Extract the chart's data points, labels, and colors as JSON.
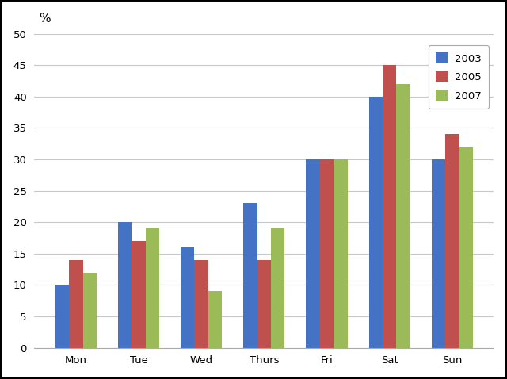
{
  "categories": [
    "Mon",
    "Tue",
    "Wed",
    "Thurs",
    "Fri",
    "Sat",
    "Sun"
  ],
  "series": {
    "2003": [
      10,
      20,
      16,
      23,
      30,
      40,
      30
    ],
    "2005": [
      14,
      17,
      14,
      14,
      30,
      45,
      34
    ],
    "2007": [
      12,
      19,
      9,
      19,
      30,
      42,
      32
    ]
  },
  "colors": {
    "2003": "#4472C4",
    "2005": "#C0504D",
    "2007": "#9BBB59"
  },
  "ylabel": "%",
  "ylim": [
    0,
    50
  ],
  "yticks": [
    0,
    5,
    10,
    15,
    20,
    25,
    30,
    35,
    40,
    45,
    50
  ],
  "legend_labels": [
    "2003",
    "2005",
    "2007"
  ],
  "background_color": "#FFFFFF",
  "plot_bg_color": "#FFFFFF",
  "grid_color": "#C8C8C8",
  "bar_width": 0.22,
  "legend_fontsize": 9.5,
  "tick_fontsize": 9.5,
  "ylabel_fontsize": 11,
  "outer_border_color": "#000000",
  "spine_color": "#AAAAAA"
}
